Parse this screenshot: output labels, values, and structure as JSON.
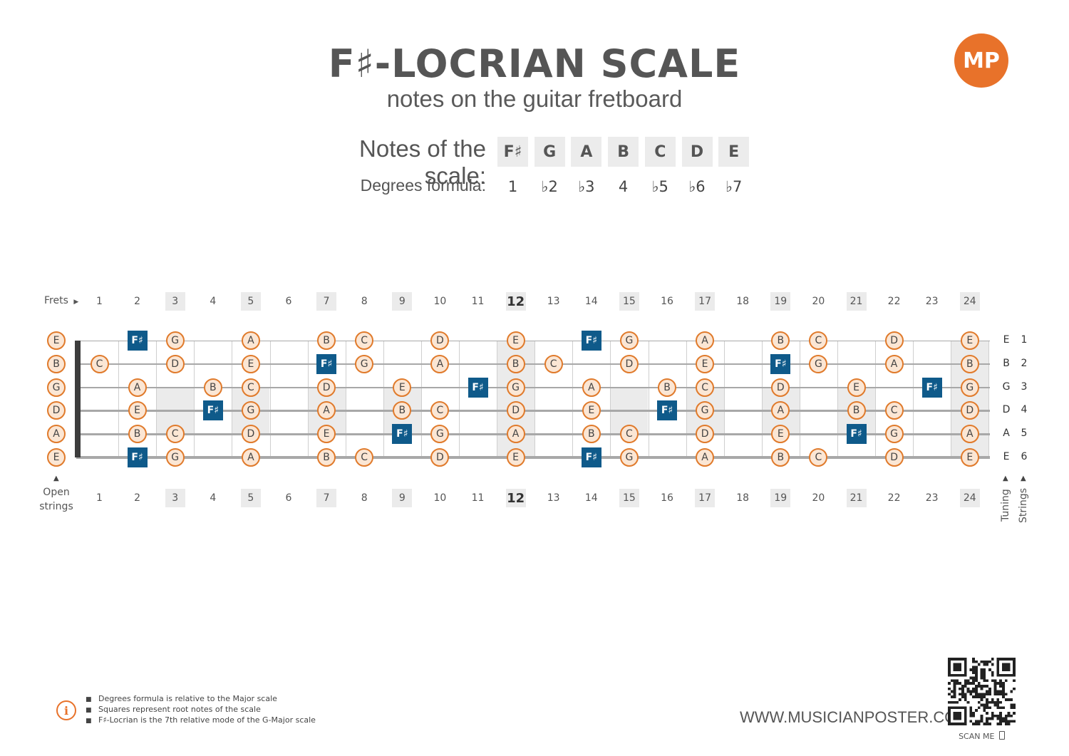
{
  "header": {
    "title": "F♯-LOCRIAN SCALE",
    "subtitle": "notes on the guitar fretboard",
    "logo_text": "MP"
  },
  "scale": {
    "notes_label": "Notes of the scale:",
    "degrees_label": "Degrees formula:",
    "notes": [
      "F♯",
      "G",
      "A",
      "B",
      "C",
      "D",
      "E"
    ],
    "degrees": [
      "1",
      "♭2",
      "♭3",
      "4",
      "♭5",
      "♭6",
      "♭7"
    ]
  },
  "fretboard": {
    "frets_label": "Frets",
    "open_strings_label": [
      "Open",
      "strings"
    ],
    "tuning_axis_label": "Tuning",
    "strings_axis_label": "Strings",
    "fret_numbers": [
      "1",
      "2",
      "3",
      "4",
      "5",
      "6",
      "7",
      "8",
      "9",
      "10",
      "11",
      "12",
      "13",
      "14",
      "15",
      "16",
      "17",
      "18",
      "19",
      "20",
      "21",
      "22",
      "23",
      "24"
    ],
    "highlighted_frets": [
      3,
      5,
      7,
      9,
      12,
      15,
      17,
      19,
      21,
      24
    ],
    "tuning": [
      "E",
      "B",
      "G",
      "D",
      "A",
      "E"
    ],
    "string_numbers": [
      "1",
      "2",
      "3",
      "4",
      "5",
      "6"
    ],
    "root_note": "F♯",
    "notes_per_string": [
      [
        "E",
        "",
        "F♯",
        "G",
        "",
        "A",
        "",
        "B",
        "C",
        "",
        "D",
        "",
        "E",
        "",
        "F♯",
        "G",
        "",
        "A",
        "",
        "B",
        "C",
        "",
        "D",
        "",
        "E"
      ],
      [
        "B",
        "C",
        "",
        "D",
        "",
        "E",
        "",
        "F♯",
        "G",
        "",
        "A",
        "",
        "B",
        "C",
        "",
        "D",
        "",
        "E",
        "",
        "F♯",
        "G",
        "",
        "A",
        "",
        "B"
      ],
      [
        "G",
        "",
        "A",
        "",
        "B",
        "C",
        "",
        "D",
        "",
        "E",
        "",
        "F♯",
        "G",
        "",
        "A",
        "",
        "B",
        "C",
        "",
        "D",
        "",
        "E",
        "",
        "F♯",
        "G"
      ],
      [
        "D",
        "",
        "E",
        "",
        "F♯",
        "G",
        "",
        "A",
        "",
        "B",
        "C",
        "",
        "D",
        "",
        "E",
        "",
        "F♯",
        "G",
        "",
        "A",
        "",
        "B",
        "C",
        "",
        "D"
      ],
      [
        "A",
        "",
        "B",
        "C",
        "",
        "D",
        "",
        "E",
        "",
        "F♯",
        "G",
        "",
        "A",
        "",
        "B",
        "C",
        "",
        "D",
        "",
        "E",
        "",
        "F♯",
        "G",
        "",
        "A"
      ],
      [
        "E",
        "",
        "F♯",
        "G",
        "",
        "A",
        "",
        "B",
        "C",
        "",
        "D",
        "",
        "E",
        "",
        "F♯",
        "G",
        "",
        "A",
        "",
        "B",
        "C",
        "",
        "D",
        "",
        "E"
      ]
    ]
  },
  "legend": {
    "items": [
      "Degrees formula is relative to the Major scale",
      "Squares represent root notes of the scale",
      "F♯-Locrian is the 7th relative mode of the G-Major scale"
    ]
  },
  "footer": {
    "website": "WWW.MUSICIANPOSTER.COM",
    "scan_label": "SCAN ME"
  },
  "colors": {
    "accent": "#e8722a",
    "root": "#0f5a8a",
    "note_fill": "#fbe6d4",
    "text": "#555555"
  }
}
